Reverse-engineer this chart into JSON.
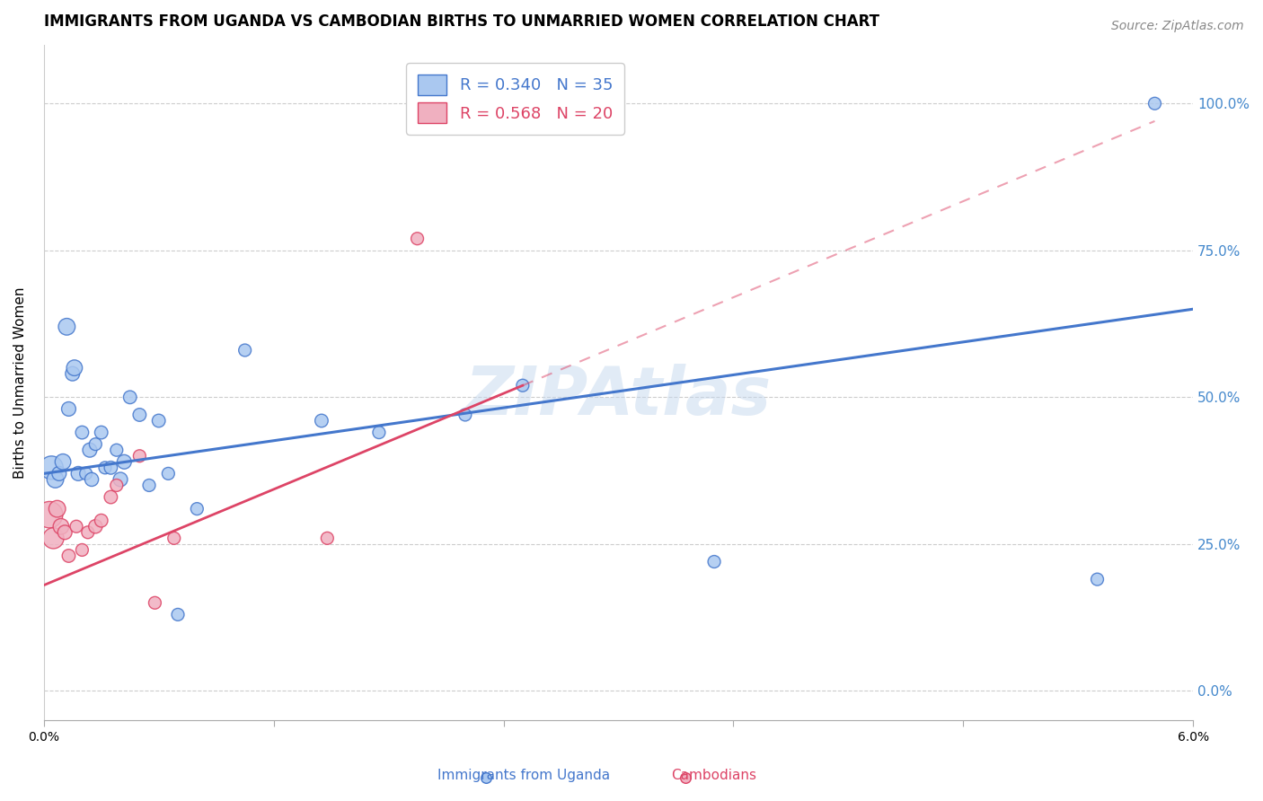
{
  "title": "IMMIGRANTS FROM UGANDA VS CAMBODIAN BIRTHS TO UNMARRIED WOMEN CORRELATION CHART",
  "source": "Source: ZipAtlas.com",
  "ylabel": "Births to Unmarried Women",
  "ytick_labels": [
    "0.0%",
    "25.0%",
    "50.0%",
    "75.0%",
    "100.0%"
  ],
  "ytick_values": [
    0,
    25,
    50,
    75,
    100
  ],
  "xlim": [
    0,
    6
  ],
  "ylim": [
    -5,
    110
  ],
  "watermark": "ZIPAtlas",
  "uganda_x": [
    0.04,
    0.06,
    0.08,
    0.1,
    0.12,
    0.13,
    0.15,
    0.16,
    0.18,
    0.2,
    0.22,
    0.24,
    0.25,
    0.27,
    0.3,
    0.32,
    0.35,
    0.38,
    0.4,
    0.42,
    0.45,
    0.5,
    0.55,
    0.6,
    0.65,
    0.7,
    0.8,
    1.05,
    1.45,
    1.75,
    2.2,
    2.5,
    3.5,
    5.5,
    5.8
  ],
  "uganda_y": [
    38,
    36,
    37,
    39,
    62,
    48,
    54,
    55,
    37,
    44,
    37,
    41,
    36,
    42,
    44,
    38,
    38,
    41,
    36,
    39,
    50,
    47,
    35,
    46,
    37,
    13,
    31,
    58,
    46,
    44,
    47,
    52,
    22,
    19,
    100
  ],
  "uganda_size": [
    350,
    180,
    130,
    160,
    180,
    130,
    130,
    160,
    130,
    110,
    100,
    130,
    120,
    100,
    110,
    100,
    110,
    100,
    130,
    130,
    110,
    110,
    100,
    110,
    100,
    100,
    100,
    100,
    110,
    100,
    100,
    100,
    100,
    100,
    100
  ],
  "uganda_color": "#aac8f0",
  "uganda_edge_color": "#4477cc",
  "uganda_trend_x0": 0,
  "uganda_trend_x1": 6,
  "uganda_trend_y0": 37,
  "uganda_trend_y1": 65,
  "cambodian_x": [
    0.03,
    0.05,
    0.07,
    0.09,
    0.11,
    0.13,
    0.17,
    0.2,
    0.23,
    0.27,
    0.3,
    0.35,
    0.38,
    0.5,
    0.58,
    0.68,
    1.48,
    1.95
  ],
  "cambodian_y": [
    30,
    26,
    31,
    28,
    27,
    23,
    28,
    24,
    27,
    28,
    29,
    33,
    35,
    40,
    15,
    26,
    26,
    77
  ],
  "cambodian_size": [
    450,
    280,
    180,
    160,
    130,
    110,
    100,
    100,
    100,
    120,
    110,
    110,
    100,
    100,
    100,
    100,
    100,
    100
  ],
  "cambodian_color": "#f0b0c0",
  "cambodian_edge_color": "#dd4466",
  "cam_solid_x0": 0,
  "cam_solid_x1": 2.5,
  "cam_solid_y0": 18,
  "cam_solid_y1": 52,
  "cam_dash_x0": 2.5,
  "cam_dash_x1": 5.8,
  "cam_dash_y0": 52,
  "cam_dash_y1": 97,
  "title_fontsize": 12,
  "axis_label_fontsize": 11,
  "tick_fontsize": 10,
  "legend_fontsize": 13,
  "source_fontsize": 10
}
